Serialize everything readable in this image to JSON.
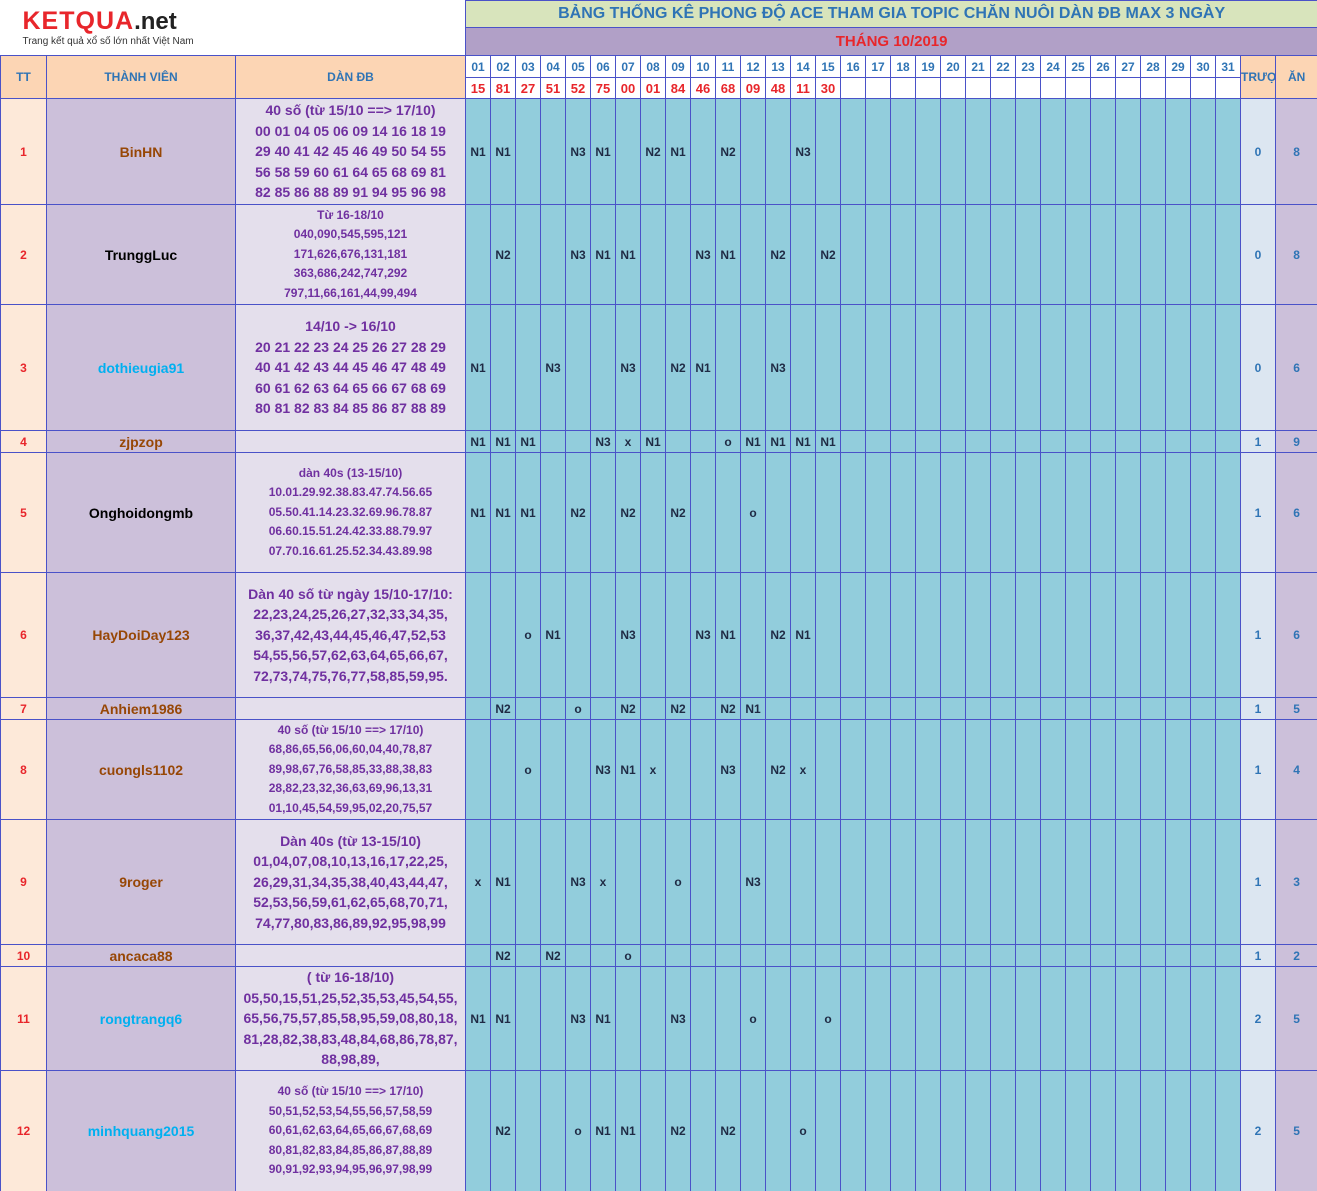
{
  "logo": {
    "brand": "KETQUA",
    "tld": ".net",
    "tagline": "Trang kết quả xổ số lớn nhất Việt Nam"
  },
  "title": "BẢNG THỐNG KÊ PHONG ĐỘ ACE THAM GIA TOPIC CHĂN NUÔI DÀN ĐB MAX 3 NGÀY",
  "month": "THÁNG 10/2019",
  "columns": {
    "tt": "TT",
    "member": "THÀNH VIÊN",
    "dan": "DÀN ĐB",
    "miss": "TRƯỢT",
    "win": "ĂN"
  },
  "days": [
    "01",
    "02",
    "03",
    "04",
    "05",
    "06",
    "07",
    "08",
    "09",
    "10",
    "11",
    "12",
    "13",
    "14",
    "15",
    "16",
    "17",
    "18",
    "19",
    "20",
    "21",
    "22",
    "23",
    "24",
    "25",
    "26",
    "27",
    "28",
    "29",
    "30",
    "31"
  ],
  "results": [
    "15",
    "81",
    "27",
    "51",
    "52",
    "75",
    "00",
    "01",
    "84",
    "46",
    "68",
    "09",
    "48",
    "11",
    "30",
    null,
    null,
    null,
    null,
    null,
    null,
    null,
    null,
    null,
    null,
    null,
    null,
    null,
    null,
    null,
    null
  ],
  "rows": [
    {
      "tt": 1,
      "name": "BinHN",
      "name_color": "#974706",
      "compact": false,
      "dan": [
        "40 số (từ 15/10 ==> 17/10)",
        "00 01 04 05 06 09 14 16 18 19",
        "29 40 41 42 45 46 49 50 54 55",
        "56 58 59 60 61 64 65 68 69 81",
        "82 85 86 88 89 91 94 95 96 98"
      ],
      "marks": [
        "N1",
        "N1",
        null,
        null,
        "N3",
        "N1",
        null,
        "N2",
        "N1",
        null,
        "N2",
        null,
        null,
        "N3",
        null,
        null,
        null,
        null,
        null,
        null,
        null,
        null,
        null,
        null,
        null,
        null,
        null,
        null,
        null,
        null,
        null
      ],
      "miss": 0,
      "win": 8
    },
    {
      "tt": 2,
      "name": "TrunggLuc",
      "name_color": "#000000",
      "compact": true,
      "dan": [
        "Từ 16-18/10",
        "040,090,545,595,121",
        "171,626,676,131,181",
        "363,686,242,747,292",
        "797,11,66,161,44,99,494"
      ],
      "marks": [
        null,
        "N2",
        null,
        null,
        "N3",
        "N1",
        "N1",
        null,
        null,
        "N3",
        "N1",
        null,
        "N2",
        null,
        "N2",
        null,
        null,
        null,
        null,
        null,
        null,
        null,
        null,
        null,
        null,
        null,
        null,
        null,
        null,
        null,
        null
      ],
      "miss": 0,
      "win": 8
    },
    {
      "tt": 3,
      "name": "dothieugia91",
      "name_color": "#00b0f0",
      "compact": false,
      "dan": [
        "14/10 -> 16/10",
        "20 21 22 23 24 25 26 27 28 29",
        "40 41 42 43 44 45 46 47 48 49",
        "60 61 62 63 64 65 66 67 68 69",
        "80 81 82 83 84 85 86 87 88 89"
      ],
      "marks": [
        "N1",
        null,
        null,
        "N3",
        null,
        null,
        "N3",
        null,
        "N2",
        "N1",
        null,
        null,
        "N3",
        null,
        null,
        null,
        null,
        null,
        null,
        null,
        null,
        null,
        null,
        null,
        null,
        null,
        null,
        null,
        null,
        null,
        null
      ],
      "miss": 0,
      "win": 6
    },
    {
      "tt": 4,
      "name": "zjpzop",
      "name_color": "#974706",
      "compact": false,
      "dan": [],
      "marks": [
        "N1",
        "N1",
        "N1",
        null,
        null,
        "N3",
        "x",
        "N1",
        null,
        null,
        "o",
        "N1",
        "N1",
        "N1",
        "N1",
        null,
        null,
        null,
        null,
        null,
        null,
        null,
        null,
        null,
        null,
        null,
        null,
        null,
        null,
        null,
        null
      ],
      "miss": 1,
      "win": 9
    },
    {
      "tt": 5,
      "name": "Onghoidongmb",
      "name_color": "#000000",
      "compact": true,
      "dan": [
        "dàn 40s (13-15/10)",
        "10.01.29.92.38.83.47.74.56.65",
        "05.50.41.14.23.32.69.96.78.87",
        "06.60.15.51.24.42.33.88.79.97",
        "07.70.16.61.25.52.34.43.89.98"
      ],
      "marks": [
        "N1",
        "N1",
        "N1",
        null,
        "N2",
        null,
        "N2",
        null,
        "N2",
        null,
        null,
        "o",
        null,
        null,
        null,
        null,
        null,
        null,
        null,
        null,
        null,
        null,
        null,
        null,
        null,
        null,
        null,
        null,
        null,
        null,
        null
      ],
      "miss": 1,
      "win": 6
    },
    {
      "tt": 6,
      "name": "HayDoiDay123",
      "name_color": "#974706",
      "compact": false,
      "dan": [
        "Dàn 40 số từ ngày 15/10-17/10:",
        "22,23,24,25,26,27,32,33,34,35,",
        "36,37,42,43,44,45,46,47,52,53",
        "54,55,56,57,62,63,64,65,66,67,",
        "72,73,74,75,76,77,58,85,59,95."
      ],
      "marks": [
        null,
        null,
        "o",
        "N1",
        null,
        null,
        "N3",
        null,
        null,
        "N3",
        "N1",
        null,
        "N2",
        "N1",
        null,
        null,
        null,
        null,
        null,
        null,
        null,
        null,
        null,
        null,
        null,
        null,
        null,
        null,
        null,
        null,
        null
      ],
      "miss": 1,
      "win": 6
    },
    {
      "tt": 7,
      "name": "Anhiem1986",
      "name_color": "#974706",
      "compact": false,
      "dan": [],
      "marks": [
        null,
        "N2",
        null,
        null,
        "o",
        null,
        "N2",
        null,
        "N2",
        null,
        "N2",
        "N1",
        null,
        null,
        null,
        null,
        null,
        null,
        null,
        null,
        null,
        null,
        null,
        null,
        null,
        null,
        null,
        null,
        null,
        null,
        null
      ],
      "miss": 1,
      "win": 5
    },
    {
      "tt": 8,
      "name": "cuongls1102",
      "name_color": "#974706",
      "compact": true,
      "dan": [
        "40 số (từ 15/10 ==> 17/10)",
        "68,86,65,56,06,60,04,40,78,87",
        "89,98,67,76,58,85,33,88,38,83",
        "28,82,23,32,36,63,69,96,13,31",
        "01,10,45,54,59,95,02,20,75,57"
      ],
      "marks": [
        null,
        null,
        "o",
        null,
        null,
        "N3",
        "N1",
        "x",
        null,
        null,
        "N3",
        null,
        "N2",
        "x",
        null,
        null,
        null,
        null,
        null,
        null,
        null,
        null,
        null,
        null,
        null,
        null,
        null,
        null,
        null,
        null,
        null
      ],
      "miss": 1,
      "win": 4
    },
    {
      "tt": 9,
      "name": "9roger",
      "name_color": "#974706",
      "compact": false,
      "dan": [
        "Dàn 40s (từ 13-15/10)",
        "01,04,07,08,10,13,16,17,22,25,",
        "26,29,31,34,35,38,40,43,44,47,",
        "52,53,56,59,61,62,65,68,70,71,",
        "74,77,80,83,86,89,92,95,98,99"
      ],
      "marks": [
        "x",
        "N1",
        null,
        null,
        "N3",
        "x",
        null,
        null,
        "o",
        null,
        null,
        "N3",
        null,
        null,
        null,
        null,
        null,
        null,
        null,
        null,
        null,
        null,
        null,
        null,
        null,
        null,
        null,
        null,
        null,
        null,
        null
      ],
      "miss": 1,
      "win": 3
    },
    {
      "tt": 10,
      "name": "ancaca88",
      "name_color": "#974706",
      "compact": false,
      "dan": [],
      "marks": [
        null,
        "N2",
        null,
        "N2",
        null,
        null,
        "o",
        null,
        null,
        null,
        null,
        null,
        null,
        null,
        null,
        null,
        null,
        null,
        null,
        null,
        null,
        null,
        null,
        null,
        null,
        null,
        null,
        null,
        null,
        null,
        null
      ],
      "miss": 1,
      "win": 2
    },
    {
      "tt": 11,
      "name": "rongtrangq6",
      "name_color": "#00b0f0",
      "compact": false,
      "dan": [
        "( từ 16-18/10)",
        "05,50,15,51,25,52,35,53,45,54,55,",
        "65,56,75,57,85,58,95,59,08,80,18,",
        "81,28,82,38,83,48,84,68,86,78,87,",
        "88,98,89,"
      ],
      "marks": [
        "N1",
        "N1",
        null,
        null,
        "N3",
        "N1",
        null,
        null,
        "N3",
        null,
        null,
        "o",
        null,
        null,
        "o",
        null,
        null,
        null,
        null,
        null,
        null,
        null,
        null,
        null,
        null,
        null,
        null,
        null,
        null,
        null,
        null
      ],
      "miss": 2,
      "win": 5
    },
    {
      "tt": 12,
      "name": "minhquang2015",
      "name_color": "#00b0f0",
      "compact": true,
      "dan": [
        "40 số (từ 15/10 ==> 17/10)",
        "50,51,52,53,54,55,56,57,58,59",
        "60,61,62,63,64,65,66,67,68,69",
        "80,81,82,83,84,85,86,87,88,89",
        "90,91,92,93,94,95,96,97,98,99"
      ],
      "marks": [
        null,
        "N2",
        null,
        null,
        "o",
        "N1",
        "N1",
        null,
        "N2",
        null,
        "N2",
        null,
        null,
        "o",
        null,
        null,
        null,
        null,
        null,
        null,
        null,
        null,
        null,
        null,
        null,
        null,
        null,
        null,
        null,
        null,
        null
      ],
      "miss": 2,
      "win": 5
    }
  ]
}
